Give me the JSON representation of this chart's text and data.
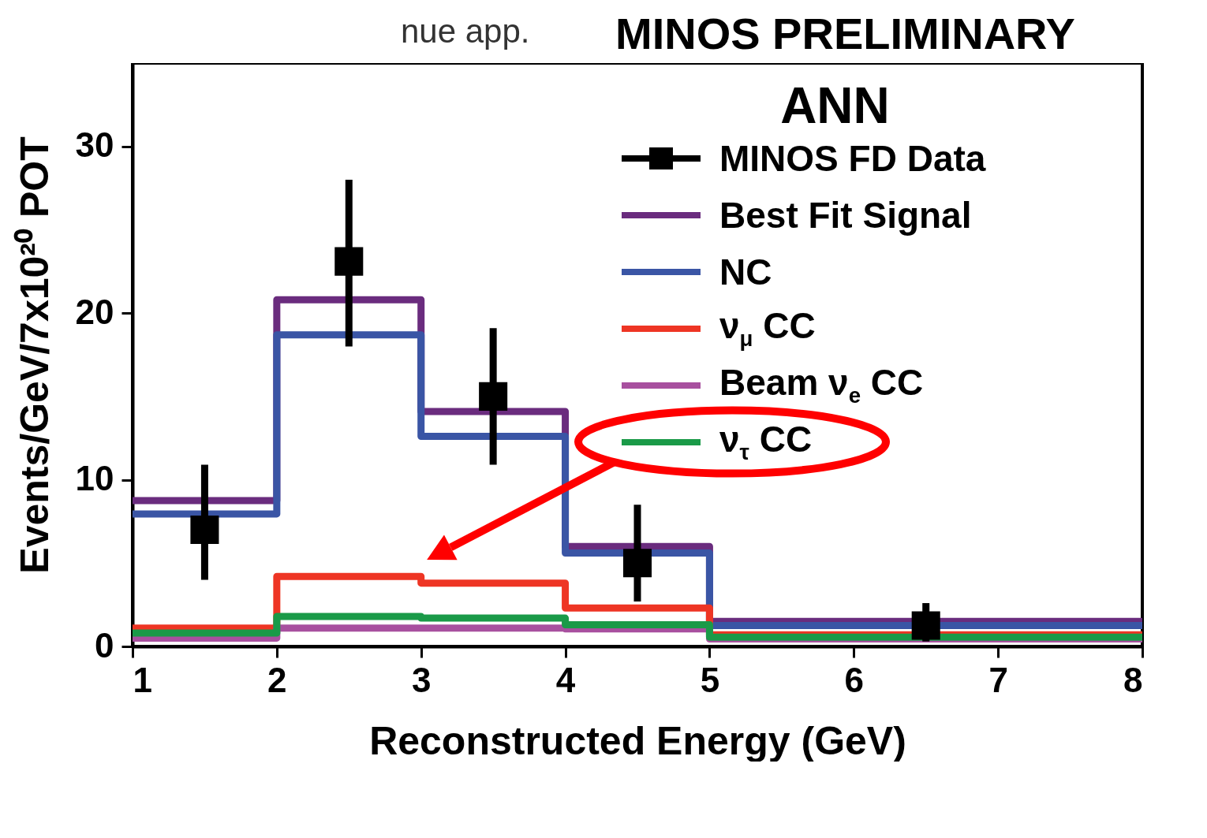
{
  "chart_data": {
    "type": "step",
    "title": "MINOS PRELIMINARY",
    "xlabel": "Reconstructed Energy (GeV)",
    "ylabel": "Events/GeV/7x10²⁰ POT",
    "annotations": [
      "nue app.",
      "ANN"
    ],
    "xlim": [
      1,
      8
    ],
    "ylim": [
      0,
      35
    ],
    "xticks": [
      1,
      2,
      3,
      4,
      5,
      6,
      7,
      8
    ],
    "yticks": [
      0,
      10,
      20,
      30
    ],
    "legend": "top right",
    "x": [
      1,
      2,
      3,
      4,
      5,
      8
    ],
    "series": [
      {
        "name": "MINOS FD Data",
        "type": "scatter",
        "marker": "square",
        "color": "#000000",
        "x": [
          1.5,
          2.5,
          3.5,
          4.5,
          6.5
        ],
        "values": [
          7.0,
          23.1,
          15.0,
          5.0,
          1.25
        ],
        "errors": [
          [
            4.0,
            10.9
          ],
          [
            18.0,
            28.0
          ],
          [
            10.9,
            19.1
          ],
          [
            2.7,
            8.5
          ],
          [
            0.3,
            2.6
          ]
        ]
      },
      {
        "name": "Best Fit Signal",
        "color": "#6a2c7e",
        "values": [
          8.75,
          20.8,
          14.1,
          6.0,
          1.5,
          1.5
        ]
      },
      {
        "name": "NC",
        "color": "#3a55a5",
        "values": [
          7.95,
          18.7,
          12.6,
          5.6,
          1.25,
          1.25
        ]
      },
      {
        "name": "ν$_{μ}$ CC",
        "color": "#ee3524",
        "values": [
          1.1,
          4.2,
          3.8,
          2.3,
          0.7,
          0.7
        ]
      },
      {
        "name": "Beam ν$_{e}$ CC",
        "color": "#a8509f",
        "values": [
          0.5,
          1.1,
          1.1,
          1.05,
          0.45,
          0.45
        ]
      },
      {
        "name": "ν$_{τ}$ CC",
        "color": "#1a9a48",
        "values": [
          0.8,
          1.8,
          1.7,
          1.3,
          0.55,
          0.55
        ]
      }
    ]
  }
}
